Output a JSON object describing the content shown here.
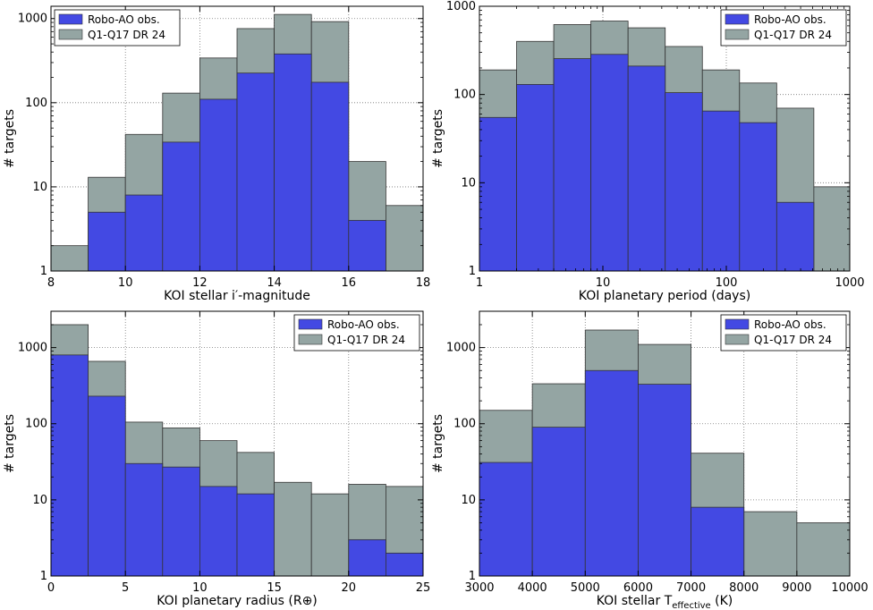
{
  "colors": {
    "robo": "#4349e3",
    "q1": "#94a5a3",
    "edge": "#333333"
  },
  "chart_data": [
    {
      "type": "bar",
      "title": "",
      "xlabel": "KOI stellar i′-magnitude",
      "ylabel": "# targets",
      "xscale": "linear",
      "yscale": "log",
      "xlim": [
        8,
        18
      ],
      "ylim": [
        1,
        1400
      ],
      "xticks": [
        8,
        10,
        12,
        14,
        16,
        18
      ],
      "xtick_labels": [
        "8",
        "10",
        "12",
        "14",
        "16",
        "18"
      ],
      "yticks": [
        1,
        10,
        100,
        1000
      ],
      "ytick_labels": [
        "1",
        "10",
        "100",
        "1000"
      ],
      "bin_edges": [
        8,
        9,
        10,
        11,
        12,
        13,
        14,
        15,
        16,
        17,
        18
      ],
      "legend_position": "top-left",
      "series": [
        {
          "name": "Robo-AO obs.",
          "values": [
            0,
            5,
            8,
            34,
            110,
            225,
            380,
            175,
            4,
            0
          ]
        },
        {
          "name": "Q1-Q17 DR 24",
          "values": [
            2,
            13,
            42,
            130,
            340,
            760,
            1120,
            920,
            20,
            6
          ]
        }
      ]
    },
    {
      "type": "bar",
      "title": "",
      "xlabel": "KOI planetary period (days)",
      "ylabel": "# targets",
      "xscale": "log",
      "yscale": "log",
      "xlim": [
        1,
        1000
      ],
      "ylim": [
        1,
        1000
      ],
      "xticks": [
        1,
        10,
        100,
        1000
      ],
      "xtick_labels": [
        "1",
        "10",
        "100",
        "1000"
      ],
      "yticks": [
        1,
        10,
        100,
        1000
      ],
      "ytick_labels": [
        "1",
        "10",
        "100",
        "1000"
      ],
      "bin_edges": [
        1,
        2,
        4,
        8,
        16,
        32,
        64,
        128,
        256,
        512,
        1000
      ],
      "legend_position": "top-right",
      "series": [
        {
          "name": "Robo-AO obs.",
          "values": [
            55,
            130,
            255,
            285,
            210,
            105,
            65,
            48,
            6,
            0
          ]
        },
        {
          "name": "Q1-Q17 DR 24",
          "values": [
            190,
            400,
            620,
            680,
            570,
            350,
            190,
            135,
            70,
            9
          ]
        }
      ]
    },
    {
      "type": "bar",
      "title": "",
      "xlabel": "KOI planetary radius (R⊕)",
      "ylabel": "# targets",
      "xscale": "linear",
      "yscale": "log",
      "xlim": [
        0,
        25
      ],
      "ylim": [
        1,
        3000
      ],
      "xticks": [
        0,
        5,
        10,
        15,
        20,
        25
      ],
      "xtick_labels": [
        "0",
        "5",
        "10",
        "15",
        "20",
        "25"
      ],
      "yticks": [
        1,
        10,
        100,
        1000
      ],
      "ytick_labels": [
        "1",
        "10",
        "100",
        "1000"
      ],
      "bin_edges": [
        0,
        2.5,
        5,
        7.5,
        10,
        12.5,
        15,
        17.5,
        20,
        22.5,
        25
      ],
      "legend_position": "top-right",
      "series": [
        {
          "name": "Robo-AO obs.",
          "values": [
            800,
            230,
            30,
            27,
            15,
            12,
            0,
            0,
            3,
            2
          ]
        },
        {
          "name": "Q1-Q17 DR 24",
          "values": [
            2000,
            660,
            105,
            88,
            60,
            42,
            17,
            12,
            16,
            15
          ]
        }
      ]
    },
    {
      "type": "bar",
      "title": "",
      "xlabel": "KOI stellar T_effective (K)",
      "xlabel_main": "KOI stellar T",
      "xlabel_sub": "effective",
      "xlabel_tail": " (K)",
      "ylabel": "# targets",
      "xscale": "linear",
      "yscale": "log",
      "xlim": [
        3000,
        10000
      ],
      "ylim": [
        1,
        3000
      ],
      "xticks": [
        3000,
        4000,
        5000,
        6000,
        7000,
        8000,
        9000,
        10000
      ],
      "xtick_labels": [
        "3000",
        "4000",
        "5000",
        "6000",
        "7000",
        "8000",
        "9000",
        "10000"
      ],
      "yticks": [
        1,
        10,
        100,
        1000
      ],
      "ytick_labels": [
        "1",
        "10",
        "100",
        "1000"
      ],
      "bin_edges": [
        3000,
        4000,
        5000,
        6000,
        7000,
        8000,
        9000,
        10000
      ],
      "legend_position": "top-right",
      "series": [
        {
          "name": "Robo-AO obs.",
          "values": [
            31,
            90,
            500,
            330,
            8,
            0,
            0
          ]
        },
        {
          "name": "Q1-Q17 DR 24",
          "values": [
            150,
            335,
            1700,
            1100,
            41,
            7,
            5
          ]
        }
      ]
    }
  ]
}
